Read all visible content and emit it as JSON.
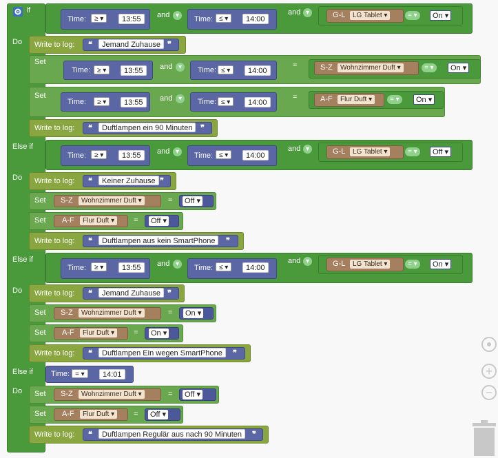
{
  "kw": {
    "if": "If",
    "do": "Do",
    "else_if": "Else if",
    "set": "Set",
    "write": "Write to log:",
    "and": "and",
    "time": "Time:",
    "eq": "="
  },
  "ops": {
    "ge": "≥",
    "le": "≤",
    "eq": "="
  },
  "t": {
    "a": "13:55",
    "b": "14:00",
    "c": "14:01"
  },
  "dev": {
    "gl": "G-L",
    "sz": "S-Z",
    "af": "A-F",
    "tablet": "LG Tablet",
    "wz": "Wohnzimmer Duft",
    "flur": "Flur Duft"
  },
  "state": {
    "on": "On",
    "off": "Off"
  },
  "logs": [
    "Jemand Zuhause",
    "Duftlampen ein 90 Minuten",
    "Keiner Zuhause",
    "Duftlampen aus kein SmartPhone",
    "Jemand Zuhause",
    "Duftlampen Ein wegen SmartPhone",
    "Duftlampen Regulär aus nach 90 Minuten"
  ],
  "icons": {
    "gear": "gear-icon",
    "target": "target-icon",
    "zoom_in": "zoom-in-icon",
    "zoom_out": "zoom-out-icon",
    "trash": "trash-icon"
  },
  "colors": {
    "block_green": "#4a9a3c",
    "action_green": "#6aa84f",
    "log_olive": "#8aa640",
    "time_blue": "#5b67a5",
    "device_brown": "#a5805f"
  }
}
